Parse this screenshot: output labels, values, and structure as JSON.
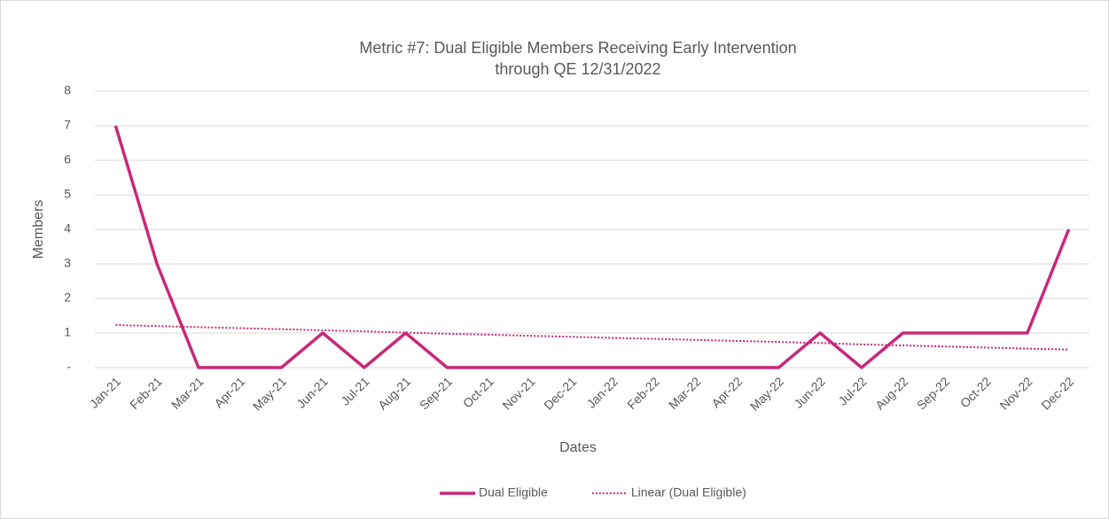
{
  "chart_data": {
    "type": "line",
    "title": [
      "Metric #7: Dual Eligible Members Receiving Early Intervention",
      "through QE 12/31/2022"
    ],
    "x_label": "Dates",
    "y_label": "Members",
    "categories": [
      "Jan-21",
      "Feb-21",
      "Mar-21",
      "Apr-21",
      "May-21",
      "Jun-21",
      "Jul-21",
      "Aug-21",
      "Sep-21",
      "Oct-21",
      "Nov-21",
      "Dec-21",
      "Jan-22",
      "Feb-22",
      "Mar-22",
      "Apr-22",
      "May-22",
      "Jun-22",
      "Jul-22",
      "Aug-22",
      "Sep-22",
      "Oct-22",
      "Nov-22",
      "Dec-22"
    ],
    "series": [
      {
        "name": "Dual Eligible",
        "color": "#c8287a",
        "values": [
          7,
          3,
          0,
          0,
          0,
          1,
          0,
          1,
          0,
          0,
          0,
          0,
          0,
          0,
          0,
          0,
          0,
          1,
          0,
          1,
          1,
          1,
          1,
          4
        ]
      },
      {
        "name": "Linear (Dual Eligible)",
        "color": "#c8287a",
        "dashed": true,
        "values": [
          1.23,
          1.2,
          1.17,
          1.14,
          1.11,
          1.08,
          1.05,
          1.01,
          0.98,
          0.95,
          0.92,
          0.89,
          0.86,
          0.83,
          0.8,
          0.77,
          0.74,
          0.71,
          0.67,
          0.64,
          0.61,
          0.58,
          0.55,
          0.52
        ]
      }
    ],
    "ylim": [
      0,
      8
    ],
    "yticks": [
      {
        "value": 0,
        "label": "-"
      },
      1,
      2,
      3,
      4,
      5,
      6,
      7,
      8
    ],
    "grid": true,
    "legend": "bottom"
  }
}
